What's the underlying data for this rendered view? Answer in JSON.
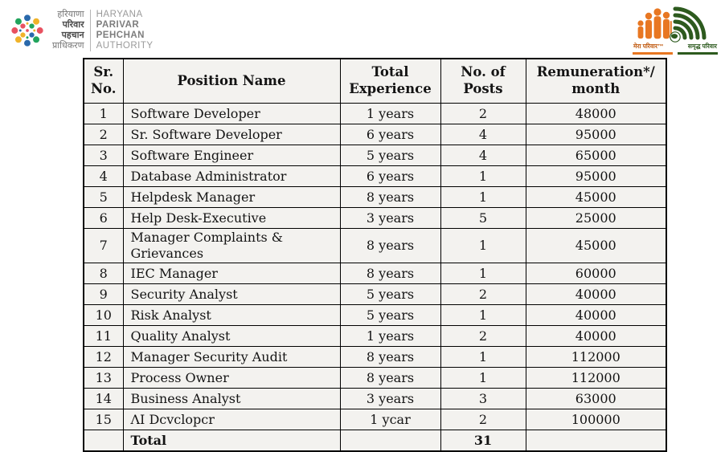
{
  "branding": {
    "left_logo": {
      "hindi_lines": [
        "हरियाणा",
        "परिवार",
        "पहचान",
        "प्राधिकरण"
      ],
      "english_lines": [
        "HARYANA",
        "PARIVAR",
        "PEHCHAN",
        "AUTHORITY"
      ],
      "dot_colors": {
        "red": "#e85160",
        "yellow": "#f0b32a",
        "blue": "#2a69ab",
        "green": "#22a45d"
      }
    },
    "right_logo": {
      "caption_left": "मेरा परिवार™",
      "caption_right": "समृद्ध परिवार",
      "figure_color": "#e87722",
      "arc_color": "#2d5a1e"
    }
  },
  "table": {
    "headers": [
      "Sr. No.",
      "Position Name",
      "Total Experience",
      "No. of Posts",
      "Remuneration*/ month"
    ],
    "rows": [
      [
        "1",
        "Software Developer",
        "1 years",
        "2",
        "48000"
      ],
      [
        "2",
        "Sr. Software Developer",
        "6 years",
        "4",
        "95000"
      ],
      [
        "3",
        "Software Engineer",
        "5 years",
        "4",
        "65000"
      ],
      [
        "4",
        "Database Administrator",
        "6 years",
        "1",
        "95000"
      ],
      [
        "5",
        "Helpdesk Manager",
        "8 years",
        "1",
        "45000"
      ],
      [
        "6",
        "Help Desk-Executive",
        "3 years",
        "5",
        "25000"
      ],
      [
        "7",
        "Manager Complaints & Grievances",
        "8 years",
        "1",
        "45000"
      ],
      [
        "8",
        "IEC Manager",
        "8 years",
        "1",
        "60000"
      ],
      [
        "9",
        "Security Analyst",
        "5 years",
        "2",
        "40000"
      ],
      [
        "10",
        "Risk Analyst",
        "5 years",
        "1",
        "40000"
      ],
      [
        "11",
        "Quality Analyst",
        "1 years",
        "2",
        "40000"
      ],
      [
        "12",
        "Manager Security Audit",
        "8 years",
        "1",
        "112000"
      ],
      [
        "13",
        "Process Owner",
        "8 years",
        "1",
        "112000"
      ],
      [
        "14",
        "Business Analyst",
        "3 years",
        "3",
        "63000"
      ],
      [
        "15",
        "ΛI Dcvclopcr",
        "1 ycar",
        "2",
        "100000"
      ]
    ],
    "total": {
      "label": "Total",
      "posts": "31"
    }
  }
}
